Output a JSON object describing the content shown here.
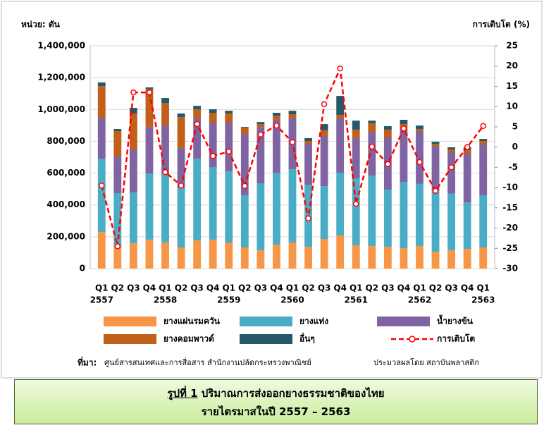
{
  "chart_data": {
    "type": "bar",
    "stacked": true,
    "y_label": "หน่วย: ตัน",
    "y2_label": "การเติบโต (%)",
    "categories": [
      "Q1",
      "Q2",
      "Q3",
      "Q4",
      "Q1",
      "Q2",
      "Q3",
      "Q4",
      "Q1",
      "Q2",
      "Q3",
      "Q4",
      "Q1",
      "Q2",
      "Q3",
      "Q4",
      "Q1",
      "Q2",
      "Q3",
      "Q4",
      "Q1",
      "Q2",
      "Q3",
      "Q4",
      "Q1"
    ],
    "year_labels": [
      "2557",
      null,
      null,
      null,
      "2558",
      null,
      null,
      null,
      "2559",
      null,
      null,
      null,
      "2560",
      null,
      null,
      null,
      "2561",
      null,
      null,
      null,
      "2562",
      null,
      null,
      null,
      "2563"
    ],
    "ylim": [
      0,
      1400000
    ],
    "yticks": [
      0,
      {
        "value": 200000,
        "label": "200,000"
      },
      {
        "value": 400000,
        "label": "400,000"
      },
      {
        "value": 600000,
        "label": "600,000"
      },
      {
        "value": 800000,
        "label": "800,000"
      },
      {
        "value": 1000000,
        "label": "1,000,000"
      },
      {
        "value": 1200000,
        "label": "1,200,000"
      },
      {
        "value": 1400000,
        "label": "1,400,000"
      }
    ],
    "y2lim": [
      -30,
      25
    ],
    "y2ticks": [
      -30,
      -25,
      -20,
      -15,
      -10,
      -5,
      0,
      5,
      10,
      15,
      20,
      25
    ],
    "grid": true,
    "series": [
      {
        "name": "ยางแผ่นรมควัน",
        "color": "#f79646",
        "values": [
          230000,
          137000,
          160000,
          182000,
          164000,
          133000,
          177000,
          182000,
          164000,
          133000,
          115000,
          151000,
          164000,
          137000,
          186000,
          208000,
          146000,
          142000,
          137000,
          128000,
          142000,
          106000,
          115000,
          124000,
          133000
        ]
      },
      {
        "name": "ยางแท่ง",
        "color": "#4bacc6",
        "values": [
          460000,
          337000,
          318000,
          416000,
          434000,
          372000,
          514000,
          456000,
          447000,
          328000,
          421000,
          451000,
          460000,
          390000,
          332000,
          394000,
          421000,
          443000,
          359000,
          417000,
          390000,
          381000,
          355000,
          292000,
          328000
        ]
      },
      {
        "name": "น้ำยางข้น",
        "color": "#8064a2",
        "values": [
          257000,
          230000,
          271000,
          292000,
          301000,
          253000,
          253000,
          279000,
          306000,
          385000,
          354000,
          333000,
          320000,
          253000,
          315000,
          342000,
          253000,
          274000,
          328000,
          332000,
          332000,
          284000,
          261000,
          306000,
          319000
        ]
      },
      {
        "name": "ยางคอมพาวด์",
        "color": "#c0601a",
        "values": [
          200000,
          160000,
          226000,
          240000,
          142000,
          194000,
          57000,
          62000,
          58000,
          40000,
          18000,
          26000,
          26000,
          22000,
          35000,
          22000,
          53000,
          54000,
          49000,
          31000,
          13000,
          13000,
          18000,
          22000,
          22000
        ]
      },
      {
        "name": "อื่นๆ",
        "color": "#23596a",
        "values": [
          23000,
          13000,
          35000,
          9000,
          31000,
          23000,
          22000,
          22000,
          17000,
          4000,
          13000,
          18000,
          22000,
          18000,
          40000,
          119000,
          57000,
          17000,
          22000,
          27000,
          22000,
          13000,
          13000,
          18000,
          13000
        ]
      },
      {
        "name": "การเติบโต",
        "color": "#ff0000",
        "type": "line",
        "axis": "y2",
        "values": [
          -9.5,
          -24.5,
          13.5,
          13.5,
          -6.2,
          -9.5,
          5.7,
          -2.2,
          -1.1,
          -9.6,
          3.1,
          5.3,
          1.2,
          -17.6,
          10.6,
          19.4,
          -14,
          0.1,
          -4.2,
          4.6,
          -3.7,
          -10.8,
          -5,
          0,
          5.2
        ]
      }
    ]
  },
  "source_label": "ที่มา:",
  "source": "ศูนย์สารสนเทศและการสื่อสาร  สำนักงานปลัดกระทรวงพาณิชย์",
  "compiled_by": "ประมวลผลโดย  สถาบันพลาสติก",
  "caption": {
    "figure": "รูปที่ 1",
    "line1": "ปริมาณการส่งออกยางธรรมชาติของไทย",
    "line2": "รายไตรมาสในปี 2557 – 2563"
  }
}
